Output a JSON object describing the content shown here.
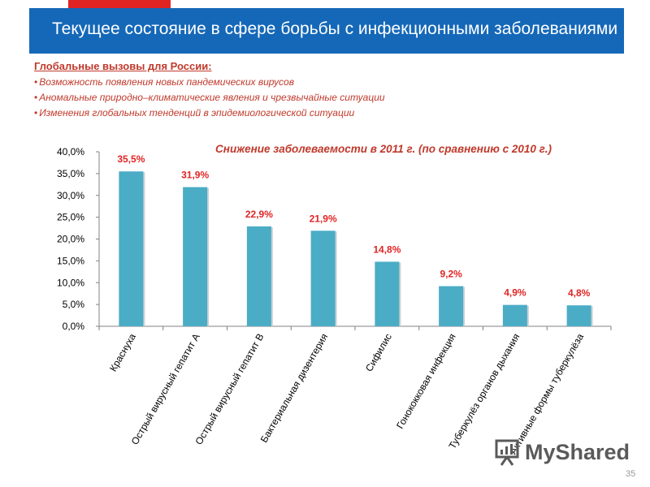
{
  "header": {
    "title": "Текущее состояние в сфере борьбы с инфекционными заболеваниями"
  },
  "challenges": {
    "heading": "Глобальные  вызовы для России:",
    "items": [
      "Возможность появления новых пандемических вирусов",
      "Аномальные природно–климатические явления и чрезвычайные ситуации",
      "Изменения  глобальных тенденций в эпидемиологической  ситуации"
    ]
  },
  "chart_data": {
    "type": "bar",
    "title": "Снижение  заболеваемости  в 2011 г.  (по сравнению  с 2010 г.)",
    "categories": [
      "Краснуха",
      "Острый вирусный гепатит А",
      "Острый вирусный гепатит В",
      "Бактериальная дизентерия",
      "Сифилис",
      "Гонококковая инфекция",
      "Туберкулёз органов дыхания",
      "Активные формы туберкулёза"
    ],
    "values": [
      35.5,
      31.9,
      22.9,
      21.9,
      14.8,
      9.2,
      4.9,
      4.8
    ],
    "data_labels": [
      "35,5%",
      "31,9%",
      "22,9%",
      "21,9%",
      "14,8%",
      "9,2%",
      "4,9%",
      "4,8%"
    ],
    "y_ticks": [
      "0,0%",
      "5,0%",
      "10,0%",
      "15,0%",
      "20,0%",
      "25,0%",
      "30,0%",
      "35,0%",
      "40,0%"
    ],
    "ylim": [
      0,
      40
    ],
    "grid": false,
    "bar_color": "#4bacc6",
    "label_color": "#e02424",
    "title_color": "#c0392b"
  },
  "footer": {
    "logo_text": "MyShared",
    "page_number": "35"
  }
}
